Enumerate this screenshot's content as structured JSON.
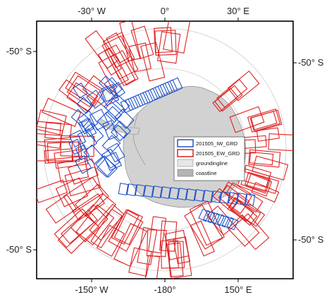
{
  "map": {
    "projection": "south-polar-stereographic",
    "top_ticks": [
      "-30° W",
      "0°",
      "30° E"
    ],
    "bottom_ticks": [
      "-150° W",
      "-180°",
      "150° E"
    ],
    "left_ticks": [
      "-50° S",
      "-50° S"
    ],
    "right_ticks": [
      "-50° S",
      "-50° S"
    ]
  },
  "legend": {
    "items": [
      {
        "label": "201505_IW_GRD",
        "color": "#2255cc",
        "style": "outline"
      },
      {
        "label": "201505_EW_GRD",
        "color": "#dd2222",
        "style": "outline"
      },
      {
        "label": "groundingline",
        "color": "#e6e6e6",
        "style": "fill"
      },
      {
        "label": "coastline",
        "color": "#b4b4b4",
        "style": "fill"
      }
    ]
  },
  "colors": {
    "ew_footprints": "#dd2222",
    "iw_footprints": "#2255cc",
    "land": "#d2d2d2",
    "graticule": "#c8c8c8",
    "frame": "#000000"
  }
}
